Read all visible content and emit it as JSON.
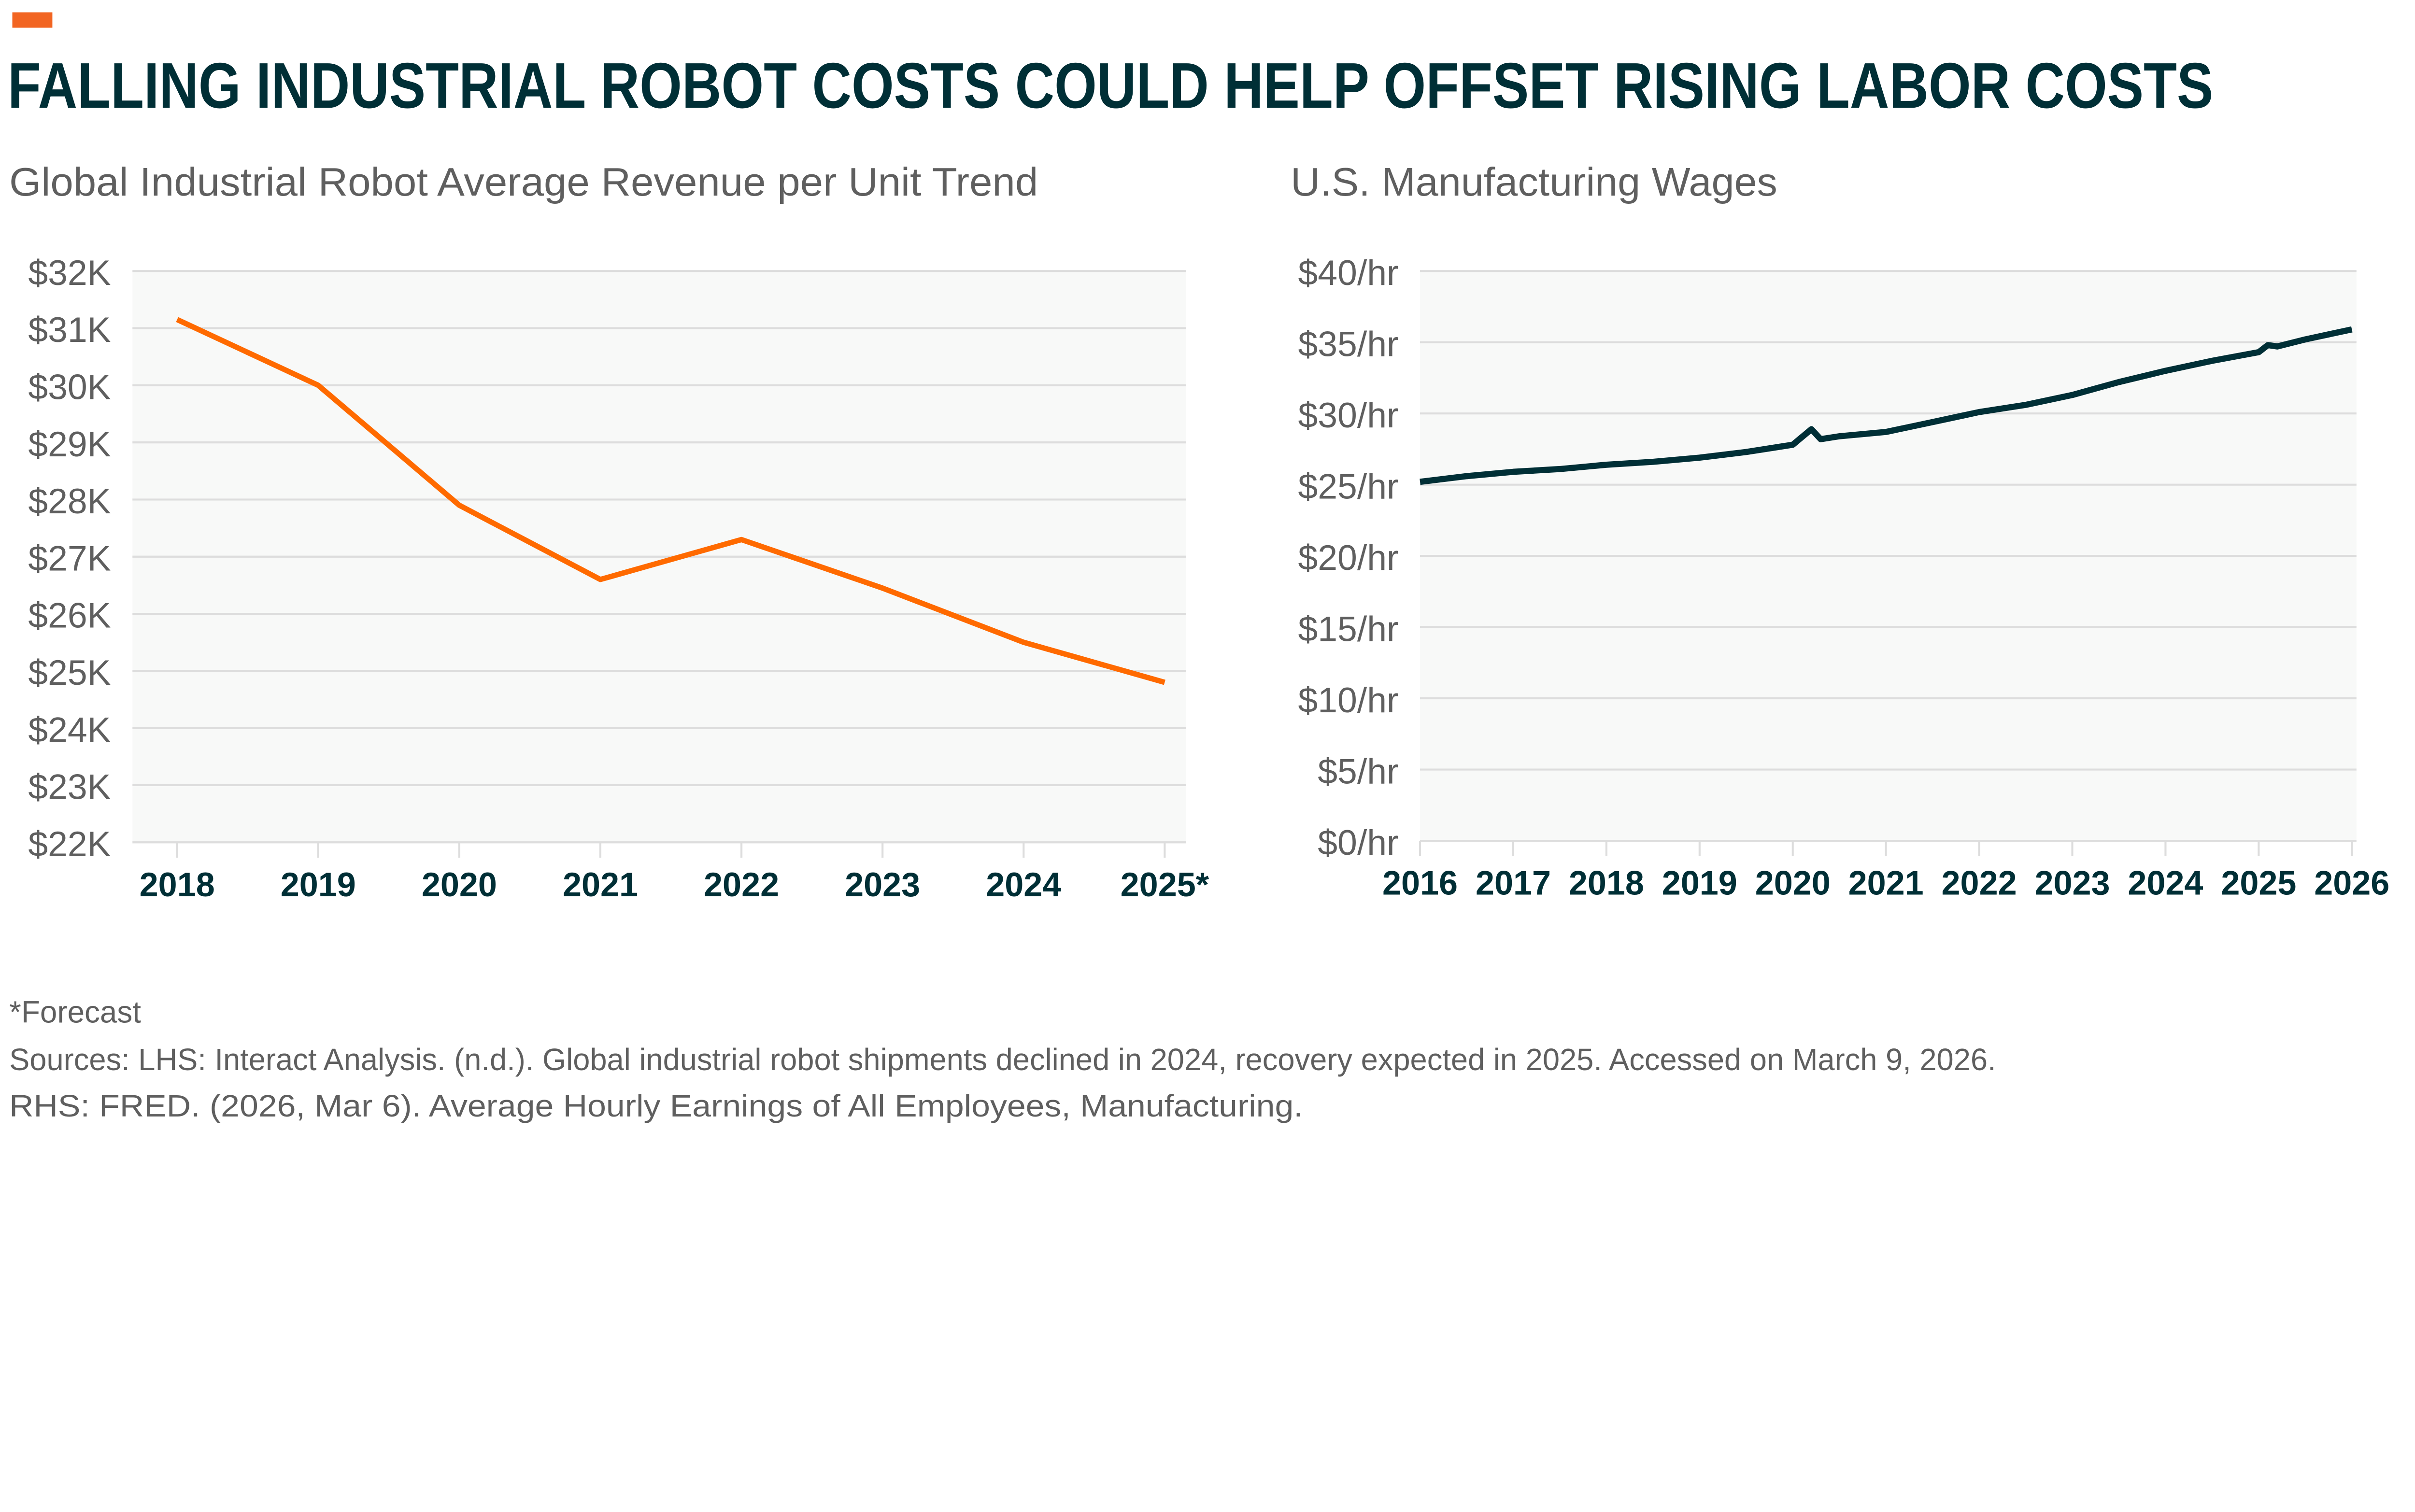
{
  "header": {
    "title": "FALLING INDUSTRIAL ROBOT COSTS COULD HELP OFFSET RISING LABOR COSTS",
    "accent_color": "#f26522"
  },
  "chart_data": [
    {
      "type": "line",
      "title": "Global Industrial Robot Average Revenue per Unit Trend",
      "categories": [
        "2018",
        "2019",
        "2020",
        "2021",
        "2022",
        "2023",
        "2024",
        "2025*"
      ],
      "values": [
        31150,
        30000,
        27900,
        26600,
        27300,
        26450,
        25500,
        24800
      ],
      "ylim": [
        22000,
        32000
      ],
      "yticks": [
        22000,
        23000,
        24000,
        25000,
        26000,
        27000,
        28000,
        29000,
        30000,
        31000,
        32000
      ],
      "ytick_labels": [
        "$22K",
        "$23K",
        "$24K",
        "$25K",
        "$26K",
        "$27K",
        "$28K",
        "$29K",
        "$30K",
        "$31K",
        "$32K"
      ],
      "grid": true,
      "line_color": "#ff6a00",
      "background": "#f8f9f8"
    },
    {
      "type": "line",
      "title": "U.S. Manufacturing Wages",
      "x": [
        2016.0,
        2016.5,
        2017.0,
        2017.5,
        2018.0,
        2018.5,
        2019.0,
        2019.5,
        2020.0,
        2020.2,
        2020.3,
        2020.5,
        2021.0,
        2021.5,
        2022.0,
        2022.5,
        2023.0,
        2023.5,
        2024.0,
        2024.5,
        2025.0,
        2025.1,
        2025.2,
        2025.5,
        2026.0
      ],
      "values": [
        25.2,
        25.6,
        25.9,
        26.1,
        26.4,
        26.6,
        26.9,
        27.3,
        27.8,
        28.9,
        28.2,
        28.4,
        28.7,
        29.4,
        30.1,
        30.6,
        31.3,
        32.2,
        33.0,
        33.7,
        34.3,
        34.8,
        34.7,
        35.2,
        35.9
      ],
      "xticks": [
        "2016",
        "2017",
        "2018",
        "2019",
        "2020",
        "2021",
        "2022",
        "2023",
        "2024",
        "2025",
        "2026"
      ],
      "ylim": [
        0,
        40
      ],
      "yticks": [
        0,
        5,
        10,
        15,
        20,
        25,
        30,
        35,
        40
      ],
      "ytick_labels": [
        "$0/hr",
        "$5/hr",
        "$10/hr",
        "$15/hr",
        "$20/hr",
        "$25/hr",
        "$30/hr",
        "$35/hr",
        "$40/hr"
      ],
      "grid": true,
      "line_color": "#002f36",
      "background": "#f8f9f8"
    }
  ],
  "footnotes": {
    "forecast": "*Forecast",
    "source_lhs": "Sources: LHS: Interact Analysis. (n.d.). Global industrial robot shipments declined in 2024, recovery expected in 2025. Accessed on March 9, 2026.",
    "source_rhs": "RHS: FRED. (2026, Mar 6). Average Hourly Earnings of All Employees, Manufacturing."
  }
}
